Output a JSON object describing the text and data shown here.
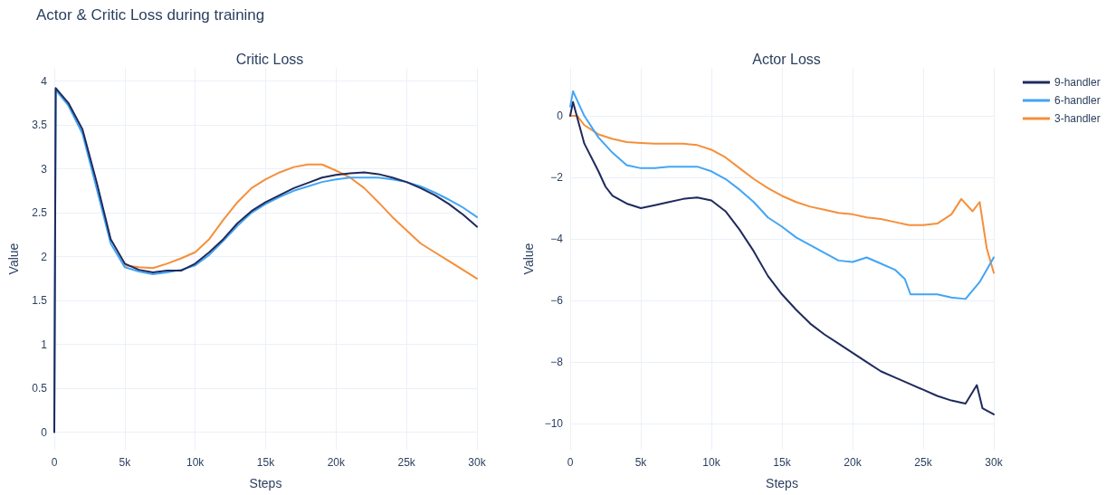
{
  "chart_data": [
    {
      "type": "line",
      "title": "Critic Loss",
      "xlabel": "Steps",
      "ylabel": "Value",
      "annotations": [
        "Actor & Critic Loss during training"
      ],
      "grid": true,
      "marker": "none",
      "line_style": "solid",
      "xlim": [
        0,
        30000
      ],
      "ylim": [
        -0.2,
        4.15
      ],
      "xticks": [
        0,
        {
          "value": 5000,
          "label": "5k"
        },
        {
          "value": 10000,
          "label": "10k"
        },
        {
          "value": 15000,
          "label": "15k"
        },
        {
          "value": 20000,
          "label": "20k"
        },
        {
          "value": 25000,
          "label": "25k"
        },
        {
          "value": 30000,
          "label": "30k"
        }
      ],
      "yticks": [
        0,
        0.5,
        1,
        1.5,
        2,
        2.5,
        3,
        3.5,
        4
      ],
      "x": [
        0,
        100,
        1000,
        2000,
        3000,
        4000,
        5000,
        6000,
        7000,
        8000,
        9000,
        10000,
        11000,
        12000,
        13000,
        14000,
        15000,
        16000,
        17000,
        18000,
        19000,
        20000,
        21000,
        22000,
        23000,
        24000,
        25000,
        26000,
        27000,
        28000,
        29000,
        30000
      ],
      "series": [
        {
          "color": "#f58f3b",
          "values": [
            null,
            null,
            null,
            null,
            null,
            null,
            1.9,
            1.88,
            1.87,
            1.92,
            1.98,
            2.05,
            2.2,
            2.42,
            2.62,
            2.78,
            2.88,
            2.96,
            3.02,
            3.05,
            3.05,
            2.98,
            2.9,
            2.78,
            2.62,
            2.45,
            2.3,
            2.15,
            2.05,
            1.95,
            1.85,
            1.75
          ]
        },
        {
          "color": "#42a5f5",
          "values": [
            0,
            3.9,
            3.72,
            3.4,
            2.78,
            2.15,
            1.88,
            1.83,
            1.8,
            1.82,
            1.85,
            1.9,
            2.02,
            2.18,
            2.35,
            2.5,
            2.6,
            2.68,
            2.75,
            2.8,
            2.85,
            2.88,
            2.9,
            2.9,
            2.9,
            2.88,
            2.85,
            2.8,
            2.73,
            2.65,
            2.56,
            2.45
          ]
        },
        {
          "color": "#1f2a5c",
          "values": [
            0,
            3.92,
            3.75,
            3.45,
            2.85,
            2.2,
            1.92,
            1.85,
            1.82,
            1.84,
            1.84,
            1.92,
            2.05,
            2.2,
            2.38,
            2.52,
            2.62,
            2.7,
            2.78,
            2.84,
            2.9,
            2.93,
            2.95,
            2.96,
            2.94,
            2.9,
            2.85,
            2.78,
            2.7,
            2.6,
            2.48,
            2.34
          ]
        }
      ]
    },
    {
      "type": "line",
      "title": "Actor Loss",
      "xlabel": "Steps",
      "ylabel": "Value",
      "grid": true,
      "marker": "none",
      "line_style": "solid",
      "legend": "top right",
      "xlim": [
        0,
        30000
      ],
      "ylim": [
        -10.85,
        1.56
      ],
      "xticks": [
        0,
        {
          "value": 5000,
          "label": "5k"
        },
        {
          "value": 10000,
          "label": "10k"
        },
        {
          "value": 15000,
          "label": "15k"
        },
        {
          "value": 20000,
          "label": "20k"
        },
        {
          "value": 25000,
          "label": "25k"
        },
        {
          "value": 30000,
          "label": "30k"
        }
      ],
      "yticks": [
        {
          "value": -10,
          "label": "−10"
        },
        {
          "value": -8,
          "label": "−8"
        },
        {
          "value": -6,
          "label": "−6"
        },
        {
          "value": -4,
          "label": "−4"
        },
        {
          "value": -2,
          "label": "−2"
        },
        0
      ],
      "series": [
        {
          "name": "3-handler",
          "color": "#f58f3b",
          "x": [
            0,
            500,
            1000,
            2000,
            3000,
            4000,
            5000,
            6000,
            7000,
            8000,
            9000,
            10000,
            11000,
            12000,
            13000,
            14000,
            15000,
            16000,
            17000,
            18000,
            19000,
            20000,
            21000,
            22000,
            23000,
            24000,
            25000,
            26000,
            27000,
            27700,
            28500,
            29000,
            29500,
            30000
          ],
          "values": [
            0,
            0,
            -0.3,
            -0.6,
            -0.75,
            -0.85,
            -0.88,
            -0.9,
            -0.9,
            -0.9,
            -0.95,
            -1.1,
            -1.35,
            -1.7,
            -2.05,
            -2.35,
            -2.6,
            -2.8,
            -2.95,
            -3.05,
            -3.15,
            -3.2,
            -3.3,
            -3.35,
            -3.45,
            -3.55,
            -3.55,
            -3.5,
            -3.2,
            -2.7,
            -3.1,
            -2.8,
            -4.3,
            -5.1
          ]
        },
        {
          "name": "6-handler",
          "color": "#42a5f5",
          "x": [
            0,
            200,
            1000,
            2000,
            3000,
            4000,
            5000,
            6000,
            7000,
            8000,
            9000,
            10000,
            11000,
            12000,
            13000,
            14000,
            15000,
            16000,
            17000,
            18000,
            19000,
            20000,
            21000,
            22000,
            23000,
            23700,
            24100,
            25000,
            26000,
            27000,
            28000,
            29000,
            30000
          ],
          "values": [
            0.3,
            0.8,
            0,
            -0.7,
            -1.2,
            -1.6,
            -1.7,
            -1.7,
            -1.65,
            -1.65,
            -1.65,
            -1.8,
            -2.05,
            -2.4,
            -2.8,
            -3.3,
            -3.6,
            -3.95,
            -4.2,
            -4.45,
            -4.7,
            -4.75,
            -4.6,
            -4.8,
            -5.0,
            -5.3,
            -5.8,
            -5.8,
            -5.8,
            -5.9,
            -5.95,
            -5.4,
            -4.6
          ]
        },
        {
          "name": "9-handler",
          "color": "#1f2a5c",
          "x": [
            0,
            200,
            1000,
            2000,
            2500,
            3000,
            4000,
            5000,
            6000,
            7000,
            8000,
            9000,
            10000,
            11000,
            12000,
            13000,
            14000,
            15000,
            16000,
            17000,
            18000,
            19000,
            20000,
            21000,
            22000,
            23000,
            24000,
            25000,
            26000,
            27000,
            28000,
            28800,
            29200,
            30000
          ],
          "values": [
            0,
            0.45,
            -0.9,
            -1.8,
            -2.3,
            -2.6,
            -2.85,
            -3.0,
            -2.9,
            -2.8,
            -2.7,
            -2.65,
            -2.75,
            -3.1,
            -3.7,
            -4.4,
            -5.2,
            -5.8,
            -6.3,
            -6.75,
            -7.1,
            -7.4,
            -7.7,
            -8.0,
            -8.3,
            -8.5,
            -8.7,
            -8.9,
            -9.1,
            -9.25,
            -9.35,
            -8.75,
            -9.5,
            -9.7
          ]
        }
      ]
    }
  ]
}
